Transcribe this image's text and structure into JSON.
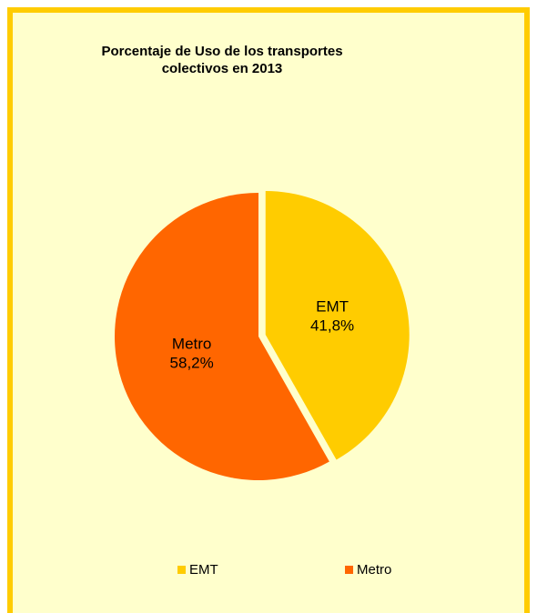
{
  "chart_data": {
    "type": "pie",
    "title": "Porcentaje de Uso de los transportes\ncolectivos en 2013",
    "categories": [
      "EMT",
      "Metro"
    ],
    "values": [
      41.8,
      58.2
    ],
    "data_labels": [
      "41,8%",
      "58,2%"
    ],
    "colors": [
      "#FFCC00",
      "#FF6600"
    ],
    "legend_position": "bottom",
    "background": "#FFFFCC",
    "border_color": "#FFCC00"
  }
}
